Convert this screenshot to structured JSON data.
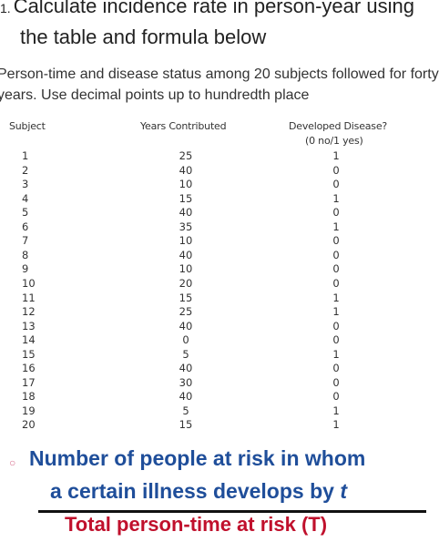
{
  "question": {
    "number": "1.",
    "line1": "Calculate incidence rate in person-year using",
    "line2": "the table and formula below"
  },
  "intro": {
    "line1": "Person-time and disease status among 20 subjects followed for forty",
    "line2": "years. Use decimal points up to hundredth place"
  },
  "table": {
    "headers": {
      "subject": "Subject",
      "years": "Years Contributed",
      "developed": "Developed Disease?",
      "developed_sub": "(0 no/1 yes)"
    },
    "rows": [
      {
        "subject": "1",
        "years": "25",
        "developed": "1"
      },
      {
        "subject": "2",
        "years": "40",
        "developed": "0"
      },
      {
        "subject": "3",
        "years": "10",
        "developed": "0"
      },
      {
        "subject": "4",
        "years": "15",
        "developed": "1"
      },
      {
        "subject": "5",
        "years": "40",
        "developed": "0"
      },
      {
        "subject": "6",
        "years": "35",
        "developed": "1"
      },
      {
        "subject": "7",
        "years": "10",
        "developed": "0"
      },
      {
        "subject": "8",
        "years": "40",
        "developed": "0"
      },
      {
        "subject": "9",
        "years": "10",
        "developed": "0"
      },
      {
        "subject": "10",
        "years": "20",
        "developed": "0"
      },
      {
        "subject": "11",
        "years": "15",
        "developed": "1"
      },
      {
        "subject": "12",
        "years": "25",
        "developed": "1"
      },
      {
        "subject": "13",
        "years": "40",
        "developed": "0"
      },
      {
        "subject": "14",
        "years": "0",
        "developed": "0"
      },
      {
        "subject": "15",
        "years": "5",
        "developed": "1"
      },
      {
        "subject": "16",
        "years": "40",
        "developed": "0"
      },
      {
        "subject": "17",
        "years": "30",
        "developed": "0"
      },
      {
        "subject": "18",
        "years": "40",
        "developed": "0"
      },
      {
        "subject": "19",
        "years": "5",
        "developed": "1"
      },
      {
        "subject": "20",
        "years": "15",
        "developed": "1"
      }
    ]
  },
  "formula": {
    "bullet_icon": "circle-bullet-icon",
    "numerator_line1": "Number of people at risk in whom",
    "numerator_line2": "a certain illness develops by",
    "numerator_var": "t",
    "denominator": "Total person-time at risk (T)",
    "numerator_color": "#1f4e9a",
    "denominator_color": "#c0102c"
  }
}
